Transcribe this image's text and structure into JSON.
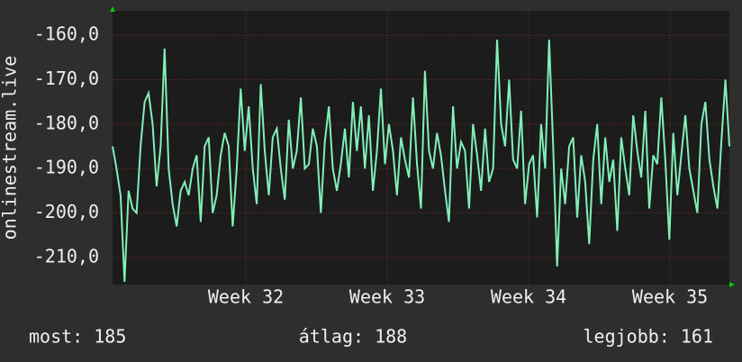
{
  "chart_data": {
    "type": "line",
    "ylabel": "onlinestream.live",
    "ylim": [
      -216.1,
      -154.5
    ],
    "yticks": [
      {
        "value": -160,
        "label": "-160,0"
      },
      {
        "value": -170,
        "label": "-170,0"
      },
      {
        "value": -180,
        "label": "-180,0"
      },
      {
        "value": -190,
        "label": "-190,0"
      },
      {
        "value": -200,
        "label": "-200,0"
      },
      {
        "value": -210,
        "label": "-210,0"
      }
    ],
    "xlim": [
      31.057,
      35.42
    ],
    "xticks": [
      {
        "value": 32,
        "label": "Week 32"
      },
      {
        "value": 33,
        "label": "Week 33"
      },
      {
        "value": 34,
        "label": "Week 34"
      },
      {
        "value": 35,
        "label": "Week 35"
      }
    ],
    "grid": true,
    "series": [
      {
        "color": "#80f0b8",
        "values": [
          -185,
          -190,
          -196,
          -215.5,
          -195,
          -199,
          -200,
          -185,
          -175,
          -173,
          -180,
          -194,
          -185,
          -163,
          -190,
          -198,
          -203,
          -195,
          -193,
          -196,
          -190,
          -187,
          -202,
          -185,
          -183,
          -200,
          -196,
          -187,
          -182,
          -185,
          -203,
          -190,
          -172,
          -186,
          -176,
          -190,
          -198,
          -171,
          -186,
          -196,
          -183,
          -181,
          -190,
          -197,
          -179,
          -190,
          -186,
          -174,
          -190,
          -189,
          -181,
          -185,
          -200,
          -184,
          -176,
          -190,
          -195,
          -189,
          -181,
          -192,
          -175,
          -186,
          -176,
          -190,
          -178,
          -195,
          -186,
          -172,
          -189,
          -180,
          -186,
          -196,
          -183,
          -188,
          -192,
          -174,
          -189,
          -199,
          -168,
          -186,
          -190,
          -182,
          -187,
          -195,
          -202,
          -176,
          -190,
          -184,
          -186,
          -199,
          -180,
          -187,
          -195,
          -181,
          -193,
          -190,
          -161,
          -180,
          -185,
          -170,
          -188,
          -190,
          -177,
          -198,
          -189,
          -187,
          -201,
          -180,
          -190,
          -161,
          -185,
          -212,
          -190,
          -198,
          -185,
          -183,
          -201,
          -187,
          -193,
          -207,
          -188,
          -180,
          -198,
          -183,
          -193,
          -188,
          -204,
          -183,
          -190,
          -196,
          -178,
          -186,
          -192,
          -177,
          -199,
          -187,
          -189,
          -174,
          -188,
          -206,
          -182,
          -196,
          -187,
          -178,
          -190,
          -195,
          -200,
          -180,
          -175,
          -188,
          -194,
          -199,
          -184,
          -170,
          -185
        ]
      }
    ],
    "stats": [
      "most: 185",
      "átlag: 188",
      "legjobb: 161"
    ]
  }
}
